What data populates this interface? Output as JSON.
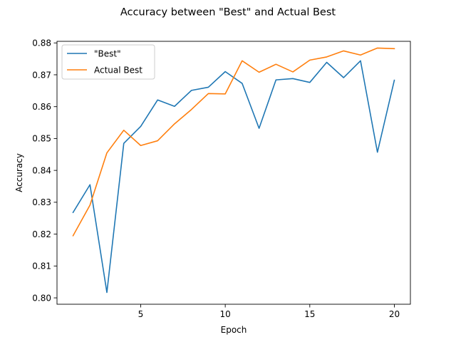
{
  "chart_data": {
    "type": "line",
    "title": "Accuracy between \"Best\" and Actual Best",
    "xlabel": "Epoch",
    "ylabel": "Accuracy",
    "xlim": [
      0.05,
      20.95
    ],
    "ylim": [
      0.798,
      0.8805
    ],
    "xticks": [
      5,
      10,
      15,
      20
    ],
    "yticks": [
      0.8,
      0.81,
      0.82,
      0.83,
      0.84,
      0.85,
      0.86,
      0.87,
      0.88
    ],
    "ytick_labels": [
      "0.80",
      "0.81",
      "0.82",
      "0.83",
      "0.84",
      "0.85",
      "0.86",
      "0.87",
      "0.88"
    ],
    "grid": false,
    "legend_position": "upper-left",
    "x": [
      1,
      2,
      3,
      4,
      5,
      6,
      7,
      8,
      9,
      10,
      11,
      12,
      13,
      14,
      15,
      16,
      17,
      18,
      19,
      20
    ],
    "series": [
      {
        "name": "\"Best\"",
        "color": "#1f77b4",
        "values": [
          0.8268,
          0.8355,
          0.8017,
          0.8485,
          0.8538,
          0.8621,
          0.8601,
          0.8651,
          0.8661,
          0.871,
          0.8673,
          0.8532,
          0.8684,
          0.8688,
          0.8676,
          0.8739,
          0.8691,
          0.8744,
          0.8457,
          0.8683
        ]
      },
      {
        "name": "Actual Best",
        "color": "#ff7f0e",
        "values": [
          0.8195,
          0.8291,
          0.8455,
          0.8526,
          0.8478,
          0.8493,
          0.8546,
          0.8591,
          0.8641,
          0.864,
          0.8744,
          0.8708,
          0.8733,
          0.8709,
          0.8746,
          0.8756,
          0.8775,
          0.8762,
          0.8784,
          0.8782
        ]
      }
    ]
  }
}
